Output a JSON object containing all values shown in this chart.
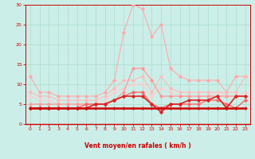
{
  "x": [
    0,
    1,
    2,
    3,
    4,
    5,
    6,
    7,
    8,
    9,
    10,
    11,
    12,
    13,
    14,
    15,
    16,
    17,
    18,
    19,
    20,
    21,
    22,
    23
  ],
  "series": [
    {
      "name": "rafales_light",
      "color": "#ffaaaa",
      "linewidth": 0.8,
      "marker": "D",
      "markersize": 1.8,
      "values": [
        12,
        8,
        8,
        7,
        7,
        7,
        7,
        7,
        8,
        11,
        23,
        30,
        29,
        22,
        25,
        14,
        12,
        11,
        11,
        11,
        11,
        8,
        12,
        12
      ]
    },
    {
      "name": "vent_light",
      "color": "#ffbbbb",
      "linewidth": 0.8,
      "marker": "D",
      "markersize": 1.8,
      "values": [
        8,
        7,
        7,
        6,
        6,
        6,
        6,
        6,
        7,
        9,
        11,
        11,
        12,
        8,
        12,
        9,
        8,
        8,
        8,
        8,
        8,
        8,
        8,
        12
      ]
    },
    {
      "name": "mid_light",
      "color": "#ffcccc",
      "linewidth": 0.8,
      "marker": "D",
      "markersize": 1.8,
      "values": [
        7,
        6,
        6,
        5,
        5,
        5,
        5,
        5,
        6,
        8,
        9,
        10,
        10,
        7,
        9,
        8,
        7,
        7,
        7,
        7,
        8,
        7,
        7,
        8
      ]
    },
    {
      "name": "mid2_med",
      "color": "#ff9999",
      "linewidth": 0.9,
      "marker": "D",
      "markersize": 1.8,
      "values": [
        5,
        5,
        5,
        5,
        5,
        5,
        5,
        5,
        5,
        6,
        8,
        14,
        14,
        11,
        7,
        7,
        7,
        7,
        7,
        7,
        7,
        7,
        7,
        7
      ]
    },
    {
      "name": "mean_med",
      "color": "#ff6666",
      "linewidth": 1.0,
      "marker": "D",
      "markersize": 1.8,
      "values": [
        4,
        4,
        4,
        4,
        4,
        4,
        5,
        5,
        5,
        6,
        7,
        8,
        8,
        5,
        4,
        5,
        5,
        5,
        5,
        6,
        6,
        5,
        4,
        6
      ]
    },
    {
      "name": "mean_dark",
      "color": "#dd2222",
      "linewidth": 1.2,
      "marker": "D",
      "markersize": 1.8,
      "values": [
        4,
        4,
        4,
        4,
        4,
        4,
        4,
        5,
        5,
        6,
        7,
        7,
        7,
        5,
        3,
        5,
        5,
        6,
        6,
        6,
        7,
        4,
        7,
        7
      ]
    },
    {
      "name": "mean_flat_dark",
      "color": "#cc0000",
      "linewidth": 1.8,
      "marker": "+",
      "markersize": 3.5,
      "values": [
        4,
        4,
        4,
        4,
        4,
        4,
        4,
        4,
        4,
        4,
        4,
        4,
        4,
        4,
        4,
        4,
        4,
        4,
        4,
        4,
        4,
        4,
        4,
        4
      ]
    }
  ],
  "wind_arrows": [
    "↙",
    "↙",
    "↙",
    "↙",
    "↙",
    "↙",
    "↙",
    "↙",
    "↙",
    "→",
    "→",
    "→",
    "→",
    "↑",
    "←",
    "←",
    "←",
    "↙",
    "↙",
    "↙",
    "↙",
    "↙",
    "↙",
    "↙"
  ],
  "xlabel": "Vent moyen/en rafales ( km/h )",
  "xlim": [
    -0.5,
    23.5
  ],
  "ylim": [
    0,
    30
  ],
  "yticks": [
    0,
    5,
    10,
    15,
    20,
    25,
    30
  ],
  "xticks": [
    0,
    1,
    2,
    3,
    4,
    5,
    6,
    7,
    8,
    9,
    10,
    11,
    12,
    13,
    14,
    15,
    16,
    17,
    18,
    19,
    20,
    21,
    22,
    23
  ],
  "background_color": "#cceee8",
  "grid_color": "#aaddcc",
  "axis_color": "#cc0000",
  "tick_color": "#cc0000",
  "label_color": "#cc0000"
}
